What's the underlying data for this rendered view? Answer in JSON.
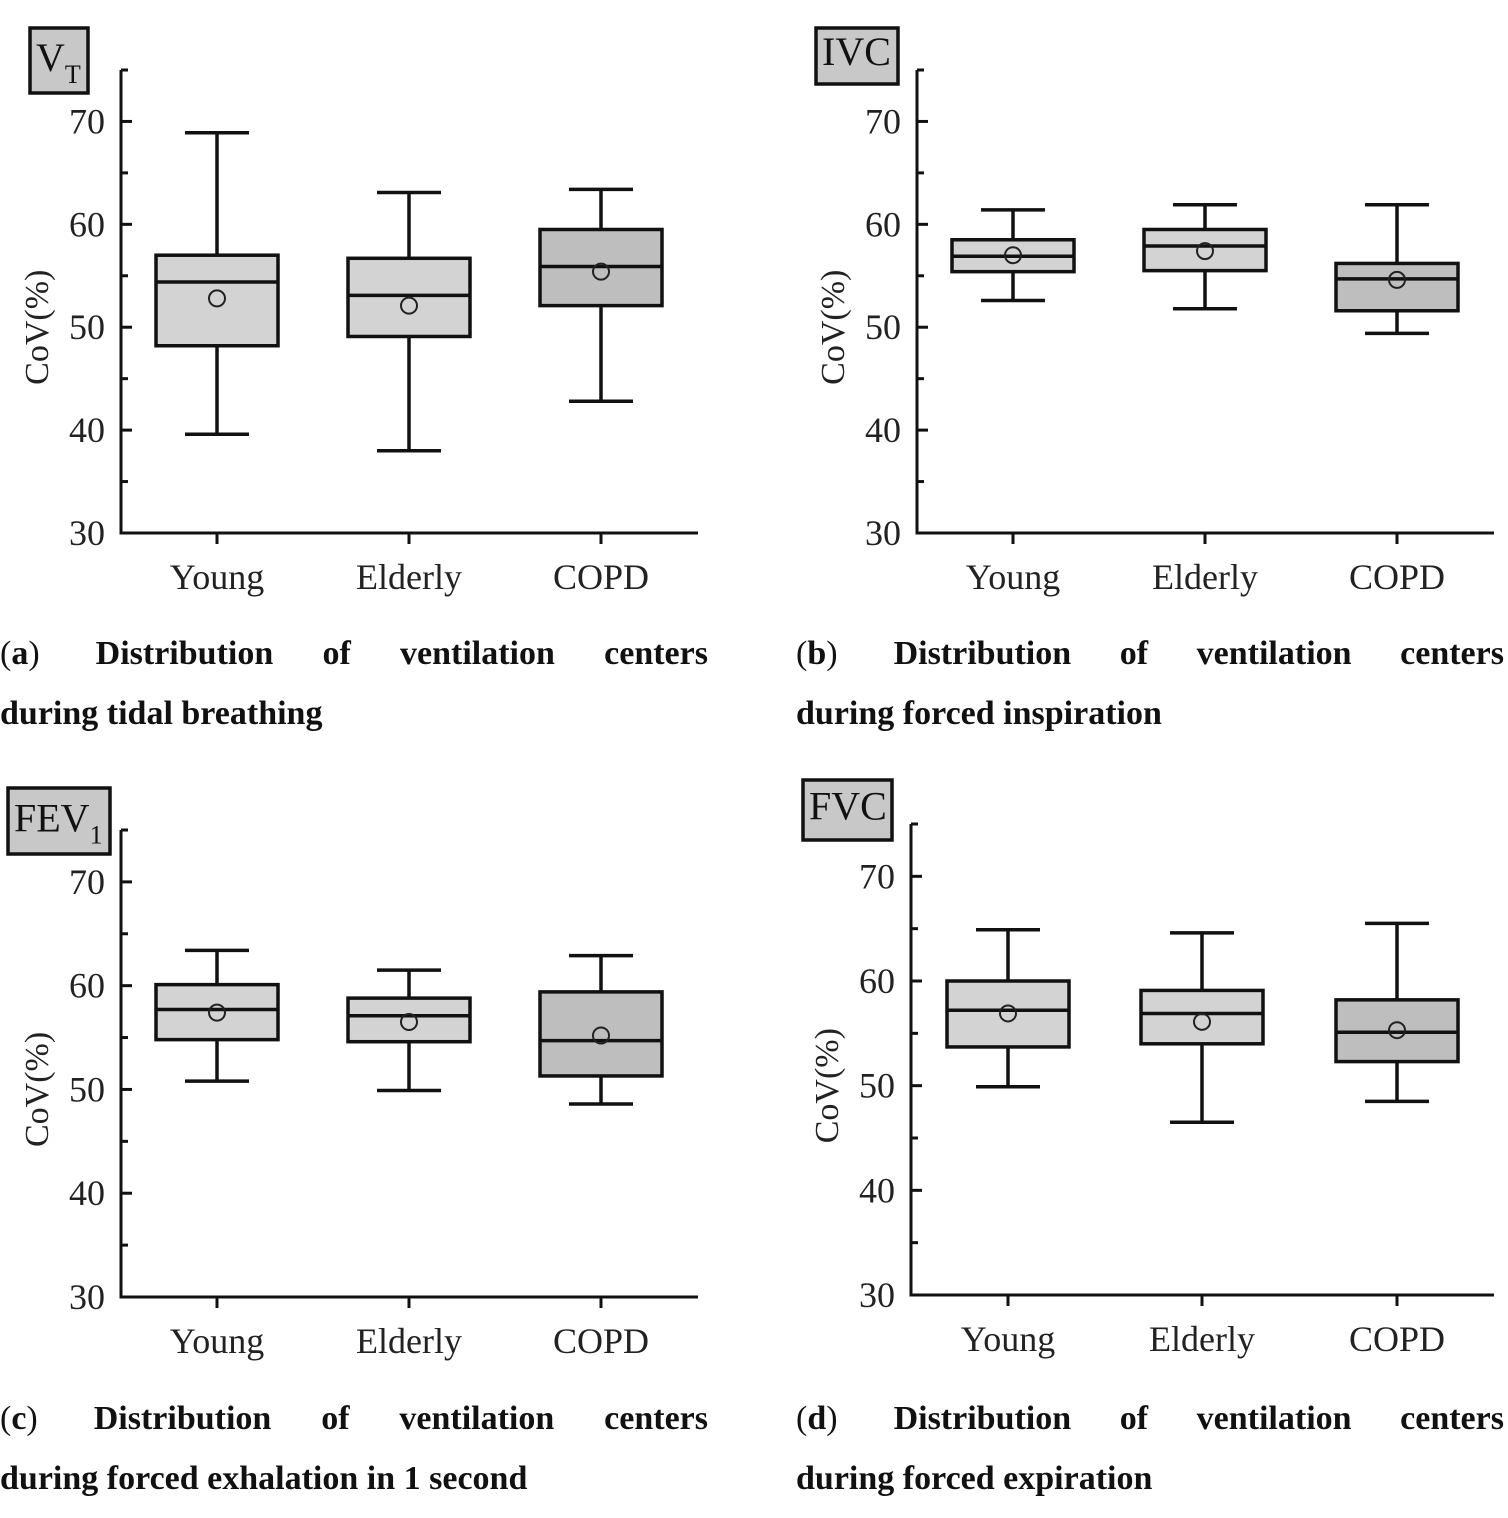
{
  "panels": [
    {
      "id": "a",
      "tag": "V",
      "tag_sub": "T",
      "ylabel": "CoV(%)",
      "caption_label": "a",
      "caption_line1": "Distribution of ventilation centers",
      "caption_line2": "during tidal breathing"
    },
    {
      "id": "b",
      "tag": "IVC",
      "tag_sub": "",
      "ylabel": "CoV(%)",
      "caption_label": "b",
      "caption_line1": "Distribution of ventilation centers",
      "caption_line2": "during forced inspiration"
    },
    {
      "id": "c",
      "tag": "FEV",
      "tag_sub": "1",
      "ylabel": "CoV(%)",
      "caption_label": "c",
      "caption_line1": "Distribution of ventilation centers",
      "caption_line2": "during forced exhalation in 1 second"
    },
    {
      "id": "d",
      "tag": "FVC",
      "tag_sub": "",
      "ylabel": "CoV(%)",
      "caption_label": "d",
      "caption_line1": "Distribution of ventilation centers",
      "caption_line2": "during forced expiration"
    }
  ],
  "chart_data": [
    {
      "type": "box",
      "panel": "a",
      "ylabel": "CoV(%)",
      "ylim": [
        30,
        75
      ],
      "yticks": [
        30,
        40,
        50,
        60,
        70
      ],
      "categories": [
        "Young",
        "Elderly",
        "COPD"
      ],
      "colors": [
        "#d3d3d3",
        "#d3d3d3",
        "#bebebe"
      ],
      "boxes": [
        {
          "min": 39.6,
          "q1": 48.2,
          "median": 54.4,
          "q3": 57.0,
          "max": 68.9,
          "mean": 52.8
        },
        {
          "min": 38.0,
          "q1": 49.1,
          "median": 53.1,
          "q3": 56.7,
          "max": 63.1,
          "mean": 52.1
        },
        {
          "min": 42.8,
          "q1": 52.1,
          "median": 55.9,
          "q3": 59.5,
          "max": 63.4,
          "mean": 55.4
        }
      ]
    },
    {
      "type": "box",
      "panel": "b",
      "ylabel": "CoV(%)",
      "ylim": [
        30,
        75
      ],
      "yticks": [
        30,
        40,
        50,
        60,
        70
      ],
      "categories": [
        "Young",
        "Elderly",
        "COPD"
      ],
      "colors": [
        "#d3d3d3",
        "#d3d3d3",
        "#bebebe"
      ],
      "boxes": [
        {
          "min": 52.6,
          "q1": 55.4,
          "median": 56.9,
          "q3": 58.5,
          "max": 61.4,
          "mean": 57.0
        },
        {
          "min": 51.8,
          "q1": 55.5,
          "median": 57.9,
          "q3": 59.5,
          "max": 61.9,
          "mean": 57.4
        },
        {
          "min": 49.4,
          "q1": 51.6,
          "median": 54.7,
          "q3": 56.2,
          "max": 61.9,
          "mean": 54.6
        }
      ]
    },
    {
      "type": "box",
      "panel": "c",
      "ylabel": "CoV(%)",
      "ylim": [
        30,
        75
      ],
      "yticks": [
        30,
        40,
        50,
        60,
        70
      ],
      "categories": [
        "Young",
        "Elderly",
        "COPD"
      ],
      "colors": [
        "#d3d3d3",
        "#d3d3d3",
        "#bebebe"
      ],
      "boxes": [
        {
          "min": 50.8,
          "q1": 54.8,
          "median": 57.7,
          "q3": 60.1,
          "max": 63.4,
          "mean": 57.4
        },
        {
          "min": 49.9,
          "q1": 54.6,
          "median": 57.1,
          "q3": 58.8,
          "max": 61.5,
          "mean": 56.5
        },
        {
          "min": 48.6,
          "q1": 51.3,
          "median": 54.7,
          "q3": 59.4,
          "max": 62.9,
          "mean": 55.2
        }
      ]
    },
    {
      "type": "box",
      "panel": "d",
      "ylabel": "CoV(%)",
      "ylim": [
        30,
        75
      ],
      "yticks": [
        30,
        40,
        50,
        60,
        70
      ],
      "categories": [
        "Young",
        "Elderly",
        "COPD"
      ],
      "colors": [
        "#d3d3d3",
        "#d3d3d3",
        "#bebebe"
      ],
      "boxes": [
        {
          "min": 49.9,
          "q1": 53.7,
          "median": 57.2,
          "q3": 60.0,
          "max": 64.9,
          "mean": 56.9
        },
        {
          "min": 46.5,
          "q1": 54.0,
          "median": 56.9,
          "q3": 59.1,
          "max": 64.6,
          "mean": 56.1
        },
        {
          "min": 48.5,
          "q1": 52.3,
          "median": 55.1,
          "q3": 58.2,
          "max": 65.5,
          "mean": 55.3
        }
      ]
    }
  ]
}
